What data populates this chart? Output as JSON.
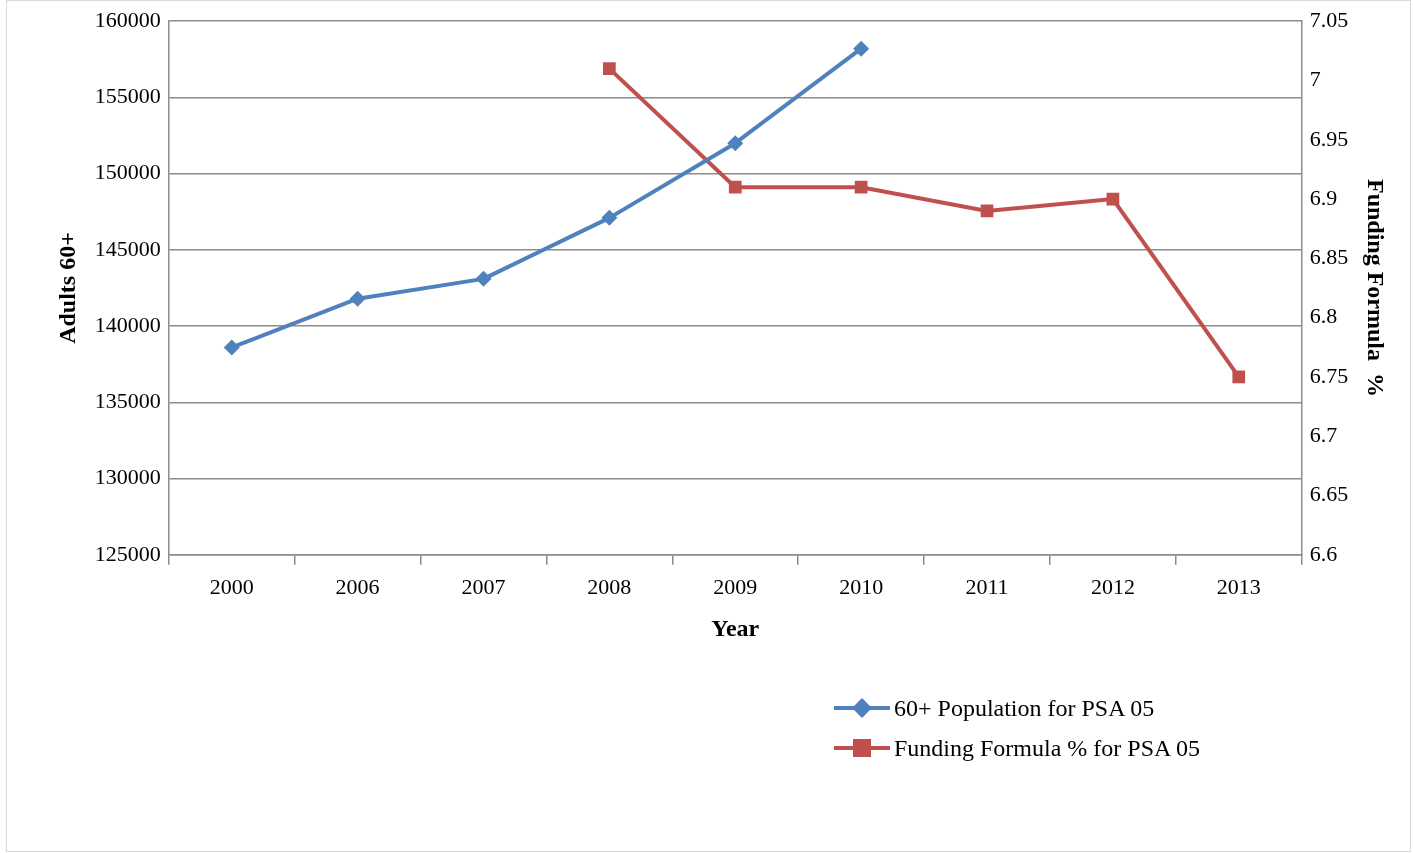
{
  "chart_data": {
    "type": "line",
    "xlabel": "Year",
    "ylabel": "Adults 60+",
    "y2label": "Funding Formula  %",
    "categories": [
      "2000",
      "2006",
      "2007",
      "2008",
      "2009",
      "2010",
      "2011",
      "2012",
      "2013"
    ],
    "series": [
      {
        "name": "60+ Population for PSA 05",
        "color": "#4f81bd",
        "marker": "diamond",
        "values": [
          138600,
          141800,
          143100,
          147100,
          152000,
          158200,
          null,
          null,
          null
        ]
      },
      {
        "name": "Funding Formula % for PSA 05",
        "color": "#c0504d",
        "marker": "square",
        "axis": "y2",
        "values": [
          null,
          null,
          null,
          7.01,
          6.91,
          6.91,
          6.89,
          6.9,
          6.75
        ]
      }
    ],
    "ylim": [
      125000,
      160000
    ],
    "yticks": [
      125000,
      130000,
      135000,
      140000,
      145000,
      150000,
      155000,
      160000
    ],
    "y2lim": [
      6.6,
      7.05
    ],
    "y2ticks": [
      6.6,
      6.65,
      6.7,
      6.75,
      6.8,
      6.85,
      6.9,
      6.95,
      7,
      7.05
    ],
    "grid": "y",
    "legend": "bottom right"
  }
}
